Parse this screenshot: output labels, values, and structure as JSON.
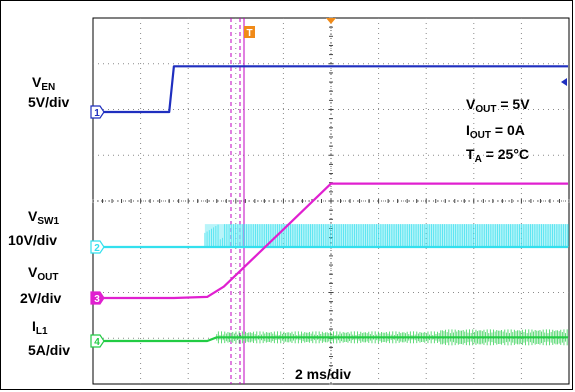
{
  "chart_data": {
    "type": "line",
    "title": "",
    "xlabel": "2 ms/div",
    "x_unit": "ms",
    "xlim": [
      0,
      20
    ],
    "grid": true,
    "conditions": {
      "vout": {
        "sym": "V",
        "sub": "OUT",
        "rest": " = 5V"
      },
      "iout": {
        "sym": "I",
        "sub": "OUT",
        "rest": " = 0A"
      },
      "ta": {
        "sym": "T",
        "sub": "A",
        "rest": " = 25°C"
      }
    },
    "trigger_marker": "T",
    "series": [
      {
        "key": "ven",
        "sym": "V",
        "sub": "EN",
        "scale": "5V/div",
        "channel": "1",
        "color": "#1f2fbf",
        "points": [
          [
            0,
            0
          ],
          [
            3.2,
            0
          ],
          [
            3.4,
            5
          ],
          [
            20,
            5
          ]
        ]
      },
      {
        "key": "vsw1",
        "sym": "V",
        "sub": "SW1",
        "scale": "10V/div",
        "channel": "2",
        "color": "#33e0ee",
        "points": [
          [
            0,
            0
          ],
          [
            5,
            0
          ],
          [
            20,
            0
          ]
        ],
        "switching_band": {
          "from_ms": 4.7,
          "to_ms": 20,
          "peak_v": 5
        }
      },
      {
        "key": "vout",
        "sym": "V",
        "sub": "OUT",
        "scale": "2V/div",
        "channel": "3",
        "color": "#e020d0",
        "points": [
          [
            0,
            0
          ],
          [
            3.4,
            0
          ],
          [
            4.8,
            0.05
          ],
          [
            5.5,
            0.5
          ],
          [
            8.0,
            3.0
          ],
          [
            10.0,
            5.0
          ],
          [
            12,
            5.0
          ],
          [
            20,
            5.0
          ]
        ]
      },
      {
        "key": "il1",
        "sym": "I",
        "sub": "L1",
        "scale": "5A/div",
        "channel": "4",
        "color": "#22cc44",
        "points": [
          [
            0,
            0
          ],
          [
            4.8,
            0
          ],
          [
            5.2,
            0.4
          ],
          [
            20,
            0.4
          ]
        ],
        "ripple_band": {
          "from_ms": 5.2,
          "to_ms": 20
        }
      }
    ]
  }
}
